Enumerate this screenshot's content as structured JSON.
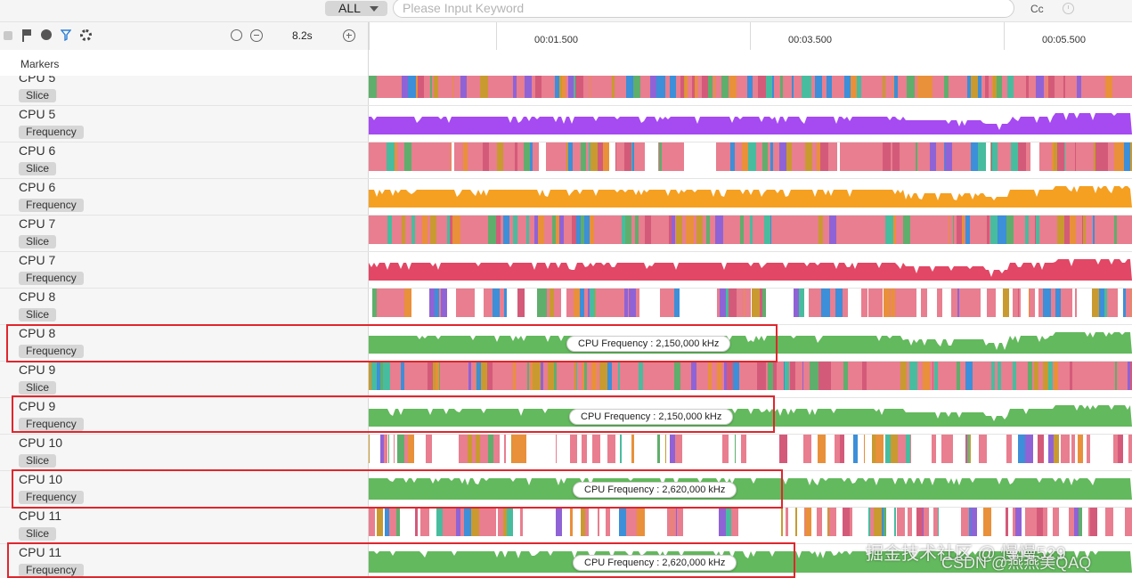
{
  "top_bar": {
    "filter_label": "ALL",
    "search_placeholder": "Please Input Keyword",
    "case_label": "Cc"
  },
  "toolbar": {
    "zoom_label": "8.2s"
  },
  "ruler": {
    "ticks": [
      "00:01.500",
      "00:03.500",
      "00:05.500"
    ]
  },
  "markers_label": "Markers",
  "colors": {
    "slice_palette": [
      "#e87e8f",
      "#48bc9e",
      "#c99a30",
      "#8f63d6",
      "#5fae6c",
      "#e9903a",
      "#3c8fd8",
      "#d45a7a"
    ],
    "freq_cpu5": "#a64af2",
    "freq_cpu6": "#f5a021",
    "freq_cpu7": "#e24765",
    "freq_big": "#63b95d",
    "highlight": "#e0262d"
  },
  "rows": [
    {
      "cpu": "CPU 5",
      "type": "Slice"
    },
    {
      "cpu": "CPU 5",
      "type": "Frequency"
    },
    {
      "cpu": "CPU 6",
      "type": "Slice"
    },
    {
      "cpu": "CPU 6",
      "type": "Frequency"
    },
    {
      "cpu": "CPU 7",
      "type": "Slice"
    },
    {
      "cpu": "CPU 7",
      "type": "Frequency"
    },
    {
      "cpu": "CPU 8",
      "type": "Slice"
    },
    {
      "cpu": "CPU 8",
      "type": "Frequency",
      "tooltip": "CPU Frequency :  2,150,000 kHz"
    },
    {
      "cpu": "CPU 9",
      "type": "Slice"
    },
    {
      "cpu": "CPU 9",
      "type": "Frequency",
      "tooltip": "CPU Frequency :  2,150,000 kHz"
    },
    {
      "cpu": "CPU 10",
      "type": "Slice"
    },
    {
      "cpu": "CPU 10",
      "type": "Frequency",
      "tooltip": "CPU Frequency :  2,620,000 kHz"
    },
    {
      "cpu": "CPU 11",
      "type": "Slice"
    },
    {
      "cpu": "CPU 11",
      "type": "Frequency",
      "tooltip": "CPU Frequency :  2,620,000 kHz"
    }
  ],
  "watermark": "掘金技术社区 @ 慢慢529",
  "watermark2": "CSDN @燕燕美QAQ"
}
